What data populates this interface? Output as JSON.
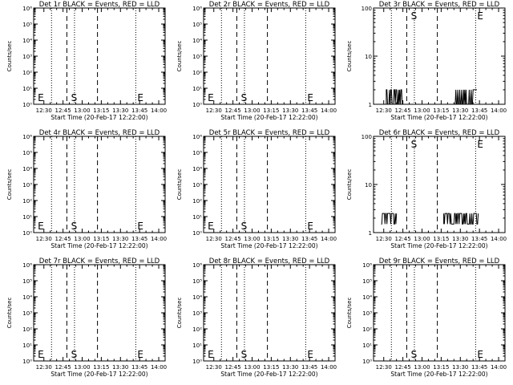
{
  "chart_data": [
    {
      "det": "1r",
      "type": "line",
      "title": "Det 1r BLACK = Events, RED = LLD",
      "xlabel": "Start Time (20-Feb-17 12:22:00)",
      "ylabel": "Counts/sec",
      "yscale": "log",
      "ylim": [
        1,
        1000000
      ],
      "yticks": [
        "10⁰",
        "10¹",
        "10²",
        "10³",
        "10⁴",
        "10⁵",
        "10⁶"
      ],
      "xticks": [
        "12:30",
        "12:45",
        "13:00",
        "13:15",
        "13:30",
        "13:45",
        "14:00"
      ],
      "xlim": [
        "12:22",
        "14:05"
      ],
      "markers": {
        "E1": "E",
        "S": "S",
        "E2": "E"
      },
      "series": []
    },
    {
      "det": "2r",
      "type": "line",
      "title": "Det 2r BLACK = Events, RED = LLD",
      "xlabel": "Start Time (20-Feb-17 12:22:00)",
      "ylabel": "Counts/sec",
      "yscale": "log",
      "ylim": [
        1,
        1000000
      ],
      "yticks": [
        "10⁰",
        "10¹",
        "10²",
        "10³",
        "10⁴",
        "10⁵",
        "10⁶"
      ],
      "xticks": [
        "12:30",
        "12:45",
        "13:00",
        "13:15",
        "13:30",
        "13:45",
        "14:00"
      ],
      "xlim": [
        "12:22",
        "14:05"
      ],
      "markers": {
        "E1": "E",
        "S": "S",
        "E2": "E"
      },
      "series": []
    },
    {
      "det": "3r",
      "type": "line",
      "title": "Det 3r BLACK = Events, RED = LLD",
      "xlabel": "Start Time (20-Feb-17 12:22:00)",
      "ylabel": "Counts/sec",
      "yscale": "log",
      "ylim": [
        1,
        100
      ],
      "yticks": [
        "1",
        "10",
        "100"
      ],
      "xticks": [
        "12:30",
        "12:45",
        "13:00",
        "13:15",
        "13:30",
        "13:45",
        "14:00"
      ],
      "xlim": [
        "12:22",
        "14:05"
      ],
      "markers": {
        "S": "S",
        "E2": "E"
      },
      "series": [
        {
          "segments": [
            [
              "12:32",
              "12:45"
            ],
            [
              "13:26",
              "13:43"
            ]
          ],
          "low": 1,
          "high": 2
        }
      ]
    },
    {
      "det": "4r",
      "type": "line",
      "title": "Det 4r BLACK = Events, RED = LLD",
      "xlabel": "Start Time (20-Feb-17 12:22:00)",
      "ylabel": "Counts/sec",
      "yscale": "log",
      "ylim": [
        1,
        1000000
      ],
      "yticks": [
        "10⁰",
        "10¹",
        "10²",
        "10³",
        "10⁴",
        "10⁵",
        "10⁶"
      ],
      "xticks": [
        "12:30",
        "12:45",
        "13:00",
        "13:15",
        "13:30",
        "13:45",
        "14:00"
      ],
      "xlim": [
        "12:22",
        "14:05"
      ],
      "markers": {
        "E1": "E",
        "S": "S",
        "E2": "E"
      },
      "series": []
    },
    {
      "det": "5r",
      "type": "line",
      "title": "Det 5r BLACK = Events, RED = LLD",
      "xlabel": "Start Time (20-Feb-17 12:22:00)",
      "ylabel": "Counts/sec",
      "yscale": "log",
      "ylim": [
        1,
        1000000
      ],
      "yticks": [
        "10⁰",
        "10¹",
        "10²",
        "10³",
        "10⁴",
        "10⁵",
        "10⁶"
      ],
      "xticks": [
        "12:30",
        "12:45",
        "13:00",
        "13:15",
        "13:30",
        "13:45",
        "14:00"
      ],
      "xlim": [
        "12:22",
        "14:05"
      ],
      "markers": {
        "E1": "E",
        "S": "S",
        "E2": "E"
      },
      "series": []
    },
    {
      "det": "6r",
      "type": "line",
      "title": "Det 6r BLACK = Events, RED = LLD",
      "xlabel": "Start Time (20-Feb-17 12:22:00)",
      "ylabel": "Counts/sec",
      "yscale": "log",
      "ylim": [
        1,
        100
      ],
      "yticks": [
        "1",
        "10",
        "100"
      ],
      "xticks": [
        "12:30",
        "12:45",
        "13:00",
        "13:15",
        "13:30",
        "13:45",
        "14:00"
      ],
      "xlim": [
        "12:22",
        "14:05"
      ],
      "markers": {
        "S": "S",
        "E2": "E"
      },
      "series": [
        {
          "segments": [
            [
              "12:28",
              "12:40"
            ],
            [
              "13:17",
              "13:44"
            ]
          ],
          "low": 1.5,
          "high": 2.5
        }
      ]
    },
    {
      "det": "7r",
      "type": "line",
      "title": "Det 7r BLACK = Events, RED = LLD",
      "xlabel": "Start Time (20-Feb-17 12:22:00)",
      "ylabel": "Counts/sec",
      "yscale": "log",
      "ylim": [
        1,
        1000000
      ],
      "yticks": [
        "10⁰",
        "10¹",
        "10²",
        "10³",
        "10⁴",
        "10⁵",
        "10⁶"
      ],
      "xticks": [
        "12:30",
        "12:45",
        "13:00",
        "13:15",
        "13:30",
        "13:45",
        "14:00"
      ],
      "xlim": [
        "12:22",
        "14:05"
      ],
      "markers": {
        "E1": "E",
        "S": "S",
        "E2": "E"
      },
      "series": []
    },
    {
      "det": "8r",
      "type": "line",
      "title": "Det 8r BLACK = Events, RED = LLD",
      "xlabel": "Start Time (20-Feb-17 12:22:00)",
      "ylabel": "Counts/sec",
      "yscale": "log",
      "ylim": [
        1,
        1000000
      ],
      "yticks": [
        "10⁰",
        "10¹",
        "10²",
        "10³",
        "10⁴",
        "10⁵",
        "10⁶"
      ],
      "xticks": [
        "12:30",
        "12:45",
        "13:00",
        "13:15",
        "13:30",
        "13:45",
        "14:00"
      ],
      "xlim": [
        "12:22",
        "14:05"
      ],
      "markers": {
        "E1": "E",
        "S": "S",
        "E2": "E"
      },
      "series": []
    },
    {
      "det": "9r",
      "type": "line",
      "title": "Det 9r BLACK = Events, RED = LLD",
      "xlabel": "Start Time (20-Feb-17 12:22:00)",
      "ylabel": "Counts/sec",
      "yscale": "log",
      "ylim": [
        1,
        1000000
      ],
      "yticks": [
        "10⁰",
        "10¹",
        "10²",
        "10³",
        "10⁴",
        "10⁵",
        "10⁶"
      ],
      "xticks": [
        "12:30",
        "12:45",
        "13:00",
        "13:15",
        "13:30",
        "13:45",
        "14:00"
      ],
      "xlim": [
        "12:22",
        "14:05"
      ],
      "markers": {
        "S": "S",
        "E2": "E"
      },
      "series": []
    }
  ],
  "vlines": {
    "dotted": [
      "12:36",
      "12:54",
      "13:42"
    ],
    "dashed": [
      "12:48",
      "13:12"
    ]
  },
  "marker_times": {
    "E1": "12:24",
    "S": "12:50",
    "E2": "13:42"
  },
  "colors": {
    "events": "#000000",
    "lld": "#ff0000"
  }
}
